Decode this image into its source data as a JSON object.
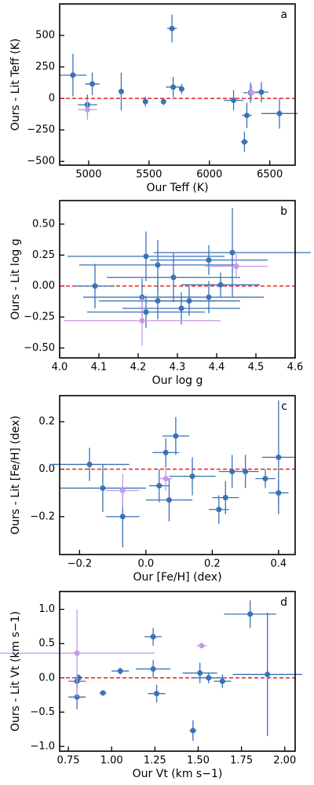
{
  "chart_data": [
    {
      "type": "scatter",
      "annotation": "a",
      "xlabel": "Our Teff (K)",
      "ylabel": "Ours - Lit Teff (K)",
      "xlim": [
        4760,
        6710
      ],
      "ylim": [
        -530,
        750
      ],
      "xticks": [
        5000,
        5500,
        6000,
        6500
      ],
      "yticks": [
        500,
        250,
        0,
        {
          "value": -250,
          "label": "−250"
        },
        {
          "value": -500,
          "label": "−500"
        }
      ],
      "refline": 0,
      "refline_color": "#e8221c",
      "series": [
        {
          "color": "#3a72b5",
          "x": [
            4870,
            4990,
            5030,
            5270,
            5470,
            5620,
            5690,
            5700,
            5770,
            6200,
            6290,
            6310,
            6340,
            6430,
            6580
          ],
          "values": [
            185,
            -50,
            115,
            55,
            -25,
            -25,
            555,
            90,
            75,
            -15,
            -345,
            -135,
            45,
            50,
            -120
          ],
          "xerr": [
            110,
            80,
            60,
            5,
            10,
            15,
            40,
            60,
            20,
            80,
            30,
            40,
            60,
            60,
            150
          ],
          "yerr": [
            170,
            80,
            90,
            150,
            40,
            30,
            110,
            80,
            40,
            80,
            80,
            100,
            80,
            80,
            120
          ]
        },
        {
          "color": "#c49ae6",
          "x": [
            4990,
            6350
          ],
          "values": [
            -90,
            45
          ],
          "xerr": [
            80,
            40
          ],
          "yerr": [
            80,
            60
          ]
        }
      ]
    },
    {
      "type": "scatter",
      "annotation": "b",
      "xlabel": "Our log g",
      "ylabel": "Ours - Lit log g",
      "xlim": [
        4.0,
        4.6
      ],
      "ylim": [
        -0.58,
        0.69
      ],
      "xticks": [
        {
          "value": 4.0,
          "label": "4.0"
        },
        4.1,
        4.2,
        4.3,
        4.4,
        4.5,
        4.6
      ],
      "yticks": [
        {
          "value": 0.5,
          "label": "0.50"
        },
        {
          "value": 0.25,
          "label": "0.25"
        },
        {
          "value": 0,
          "label": "0.00"
        },
        {
          "value": -0.25,
          "label": "−0.25"
        },
        {
          "value": -0.5,
          "label": "−0.50"
        }
      ],
      "refline": 0,
      "refline_color": "#e8221c",
      "series": [
        {
          "color": "#3a72b5",
          "x": [
            4.09,
            4.21,
            4.22,
            4.22,
            4.25,
            4.25,
            4.29,
            4.31,
            4.33,
            4.38,
            4.38,
            4.41,
            4.44
          ],
          "values": [
            0.0,
            -0.09,
            -0.21,
            0.24,
            -0.12,
            0.17,
            0.07,
            -0.18,
            -0.12,
            0.21,
            -0.09,
            0.01,
            0.27
          ],
          "xerr": [
            0.05,
            0.15,
            0.15,
            0.2,
            0.15,
            0.2,
            0.17,
            0.15,
            0.13,
            0.15,
            0.14,
            0.1,
            0.2
          ],
          "yerr": [
            0.18,
            0.15,
            0.13,
            0.2,
            0.15,
            0.2,
            0.2,
            0.13,
            0.12,
            0.12,
            0.13,
            0.1,
            0.36
          ]
        },
        {
          "color": "#c49ae6",
          "x": [
            4.21,
            4.45
          ],
          "values": [
            -0.28,
            0.16
          ],
          "xerr": [
            0.2,
            0.08
          ],
          "yerr": [
            0.2,
            0.1
          ]
        }
      ]
    },
    {
      "type": "scatter",
      "annotation": "c",
      "xlabel": "Our [Fe/H] (dex)",
      "ylabel": "Ours - Lit [Fe/H] (dex)",
      "xlim": [
        -0.26,
        0.45
      ],
      "ylim": [
        -0.36,
        0.31
      ],
      "xticks": [
        {
          "value": -0.2,
          "label": "−0.2"
        },
        {
          "value": 0,
          "label": "0.0"
        },
        0.2,
        0.4
      ],
      "yticks": [
        0.2,
        {
          "value": 0,
          "label": "0.0"
        },
        {
          "value": -0.2,
          "label": "−0.2"
        }
      ],
      "refline": 0,
      "refline_color": "#e8221c",
      "series": [
        {
          "color": "#3a72b5",
          "x": [
            -0.17,
            -0.13,
            -0.07,
            0.04,
            0.06,
            0.07,
            0.09,
            0.14,
            0.22,
            0.24,
            0.26,
            0.3,
            0.36,
            0.4,
            0.4
          ],
          "values": [
            0.02,
            -0.08,
            -0.2,
            -0.07,
            0.07,
            -0.13,
            0.14,
            -0.03,
            -0.17,
            -0.12,
            -0.01,
            -0.01,
            -0.04,
            -0.1,
            0.05
          ],
          "xerr": [
            0.12,
            0.13,
            0.05,
            0.03,
            0.04,
            0.07,
            0.04,
            0.07,
            0.03,
            0.04,
            0.04,
            0.04,
            0.03,
            0.03,
            0.05
          ],
          "yerr": [
            0.07,
            0.1,
            0.13,
            0.07,
            0.06,
            0.09,
            0.08,
            0.08,
            0.06,
            0.07,
            0.07,
            0.07,
            0.04,
            0.05,
            0.24
          ]
        },
        {
          "color": "#c49ae6",
          "x": [
            -0.07,
            0.06
          ],
          "values": [
            -0.09,
            -0.04
          ],
          "xerr": [
            0.05,
            0.02
          ],
          "yerr": [
            0.07,
            0.05
          ]
        }
      ]
    },
    {
      "type": "scatter",
      "annotation": "d",
      "xlabel": "Our Vt (km s−1)",
      "ylabel": "Ours - Lit Vt (km s−1)",
      "xlim": [
        0.7,
        2.06
      ],
      "ylim": [
        -1.07,
        1.26
      ],
      "xticks": [
        0.75,
        {
          "value": 1,
          "label": "1.00"
        },
        1.25,
        {
          "value": 1.5,
          "label": "1.50"
        },
        1.75,
        {
          "value": 2,
          "label": "2.00"
        }
      ],
      "yticks": [
        {
          "value": 1,
          "label": "1.0"
        },
        0.5,
        {
          "value": 0,
          "label": "0.0"
        },
        {
          "value": -0.5,
          "label": "−0.5"
        },
        {
          "value": -1,
          "label": "−1.0"
        }
      ],
      "refline": 0,
      "refline_color": "#e8221c",
      "series": [
        {
          "color": "#3a72b5",
          "x": [
            0.8,
            0.8,
            0.81,
            0.95,
            1.05,
            1.24,
            1.24,
            1.26,
            1.47,
            1.51,
            1.56,
            1.64,
            1.8,
            1.9
          ],
          "values": [
            -0.28,
            -0.05,
            0.0,
            -0.22,
            0.1,
            0.6,
            0.13,
            -0.23,
            -0.77,
            0.07,
            0.0,
            -0.05,
            0.93,
            0.05
          ],
          "xerr": [
            0.05,
            0.05,
            0.01,
            0.02,
            0.05,
            0.05,
            0.1,
            0.05,
            0.02,
            0.1,
            0.1,
            0.05,
            0.15,
            0.2
          ],
          "yerr": [
            0.18,
            0.1,
            0.05,
            0.02,
            0.05,
            0.13,
            0.13,
            0.13,
            0.15,
            0.15,
            0.08,
            0.1,
            0.2,
            0.9
          ]
        },
        {
          "color": "#c49ae6",
          "x": [
            0.8,
            1.52
          ],
          "values": [
            0.36,
            0.47
          ],
          "xerr": [
            0.45,
            0.03
          ],
          "yerr": [
            0.64,
            0.02
          ]
        }
      ]
    }
  ]
}
